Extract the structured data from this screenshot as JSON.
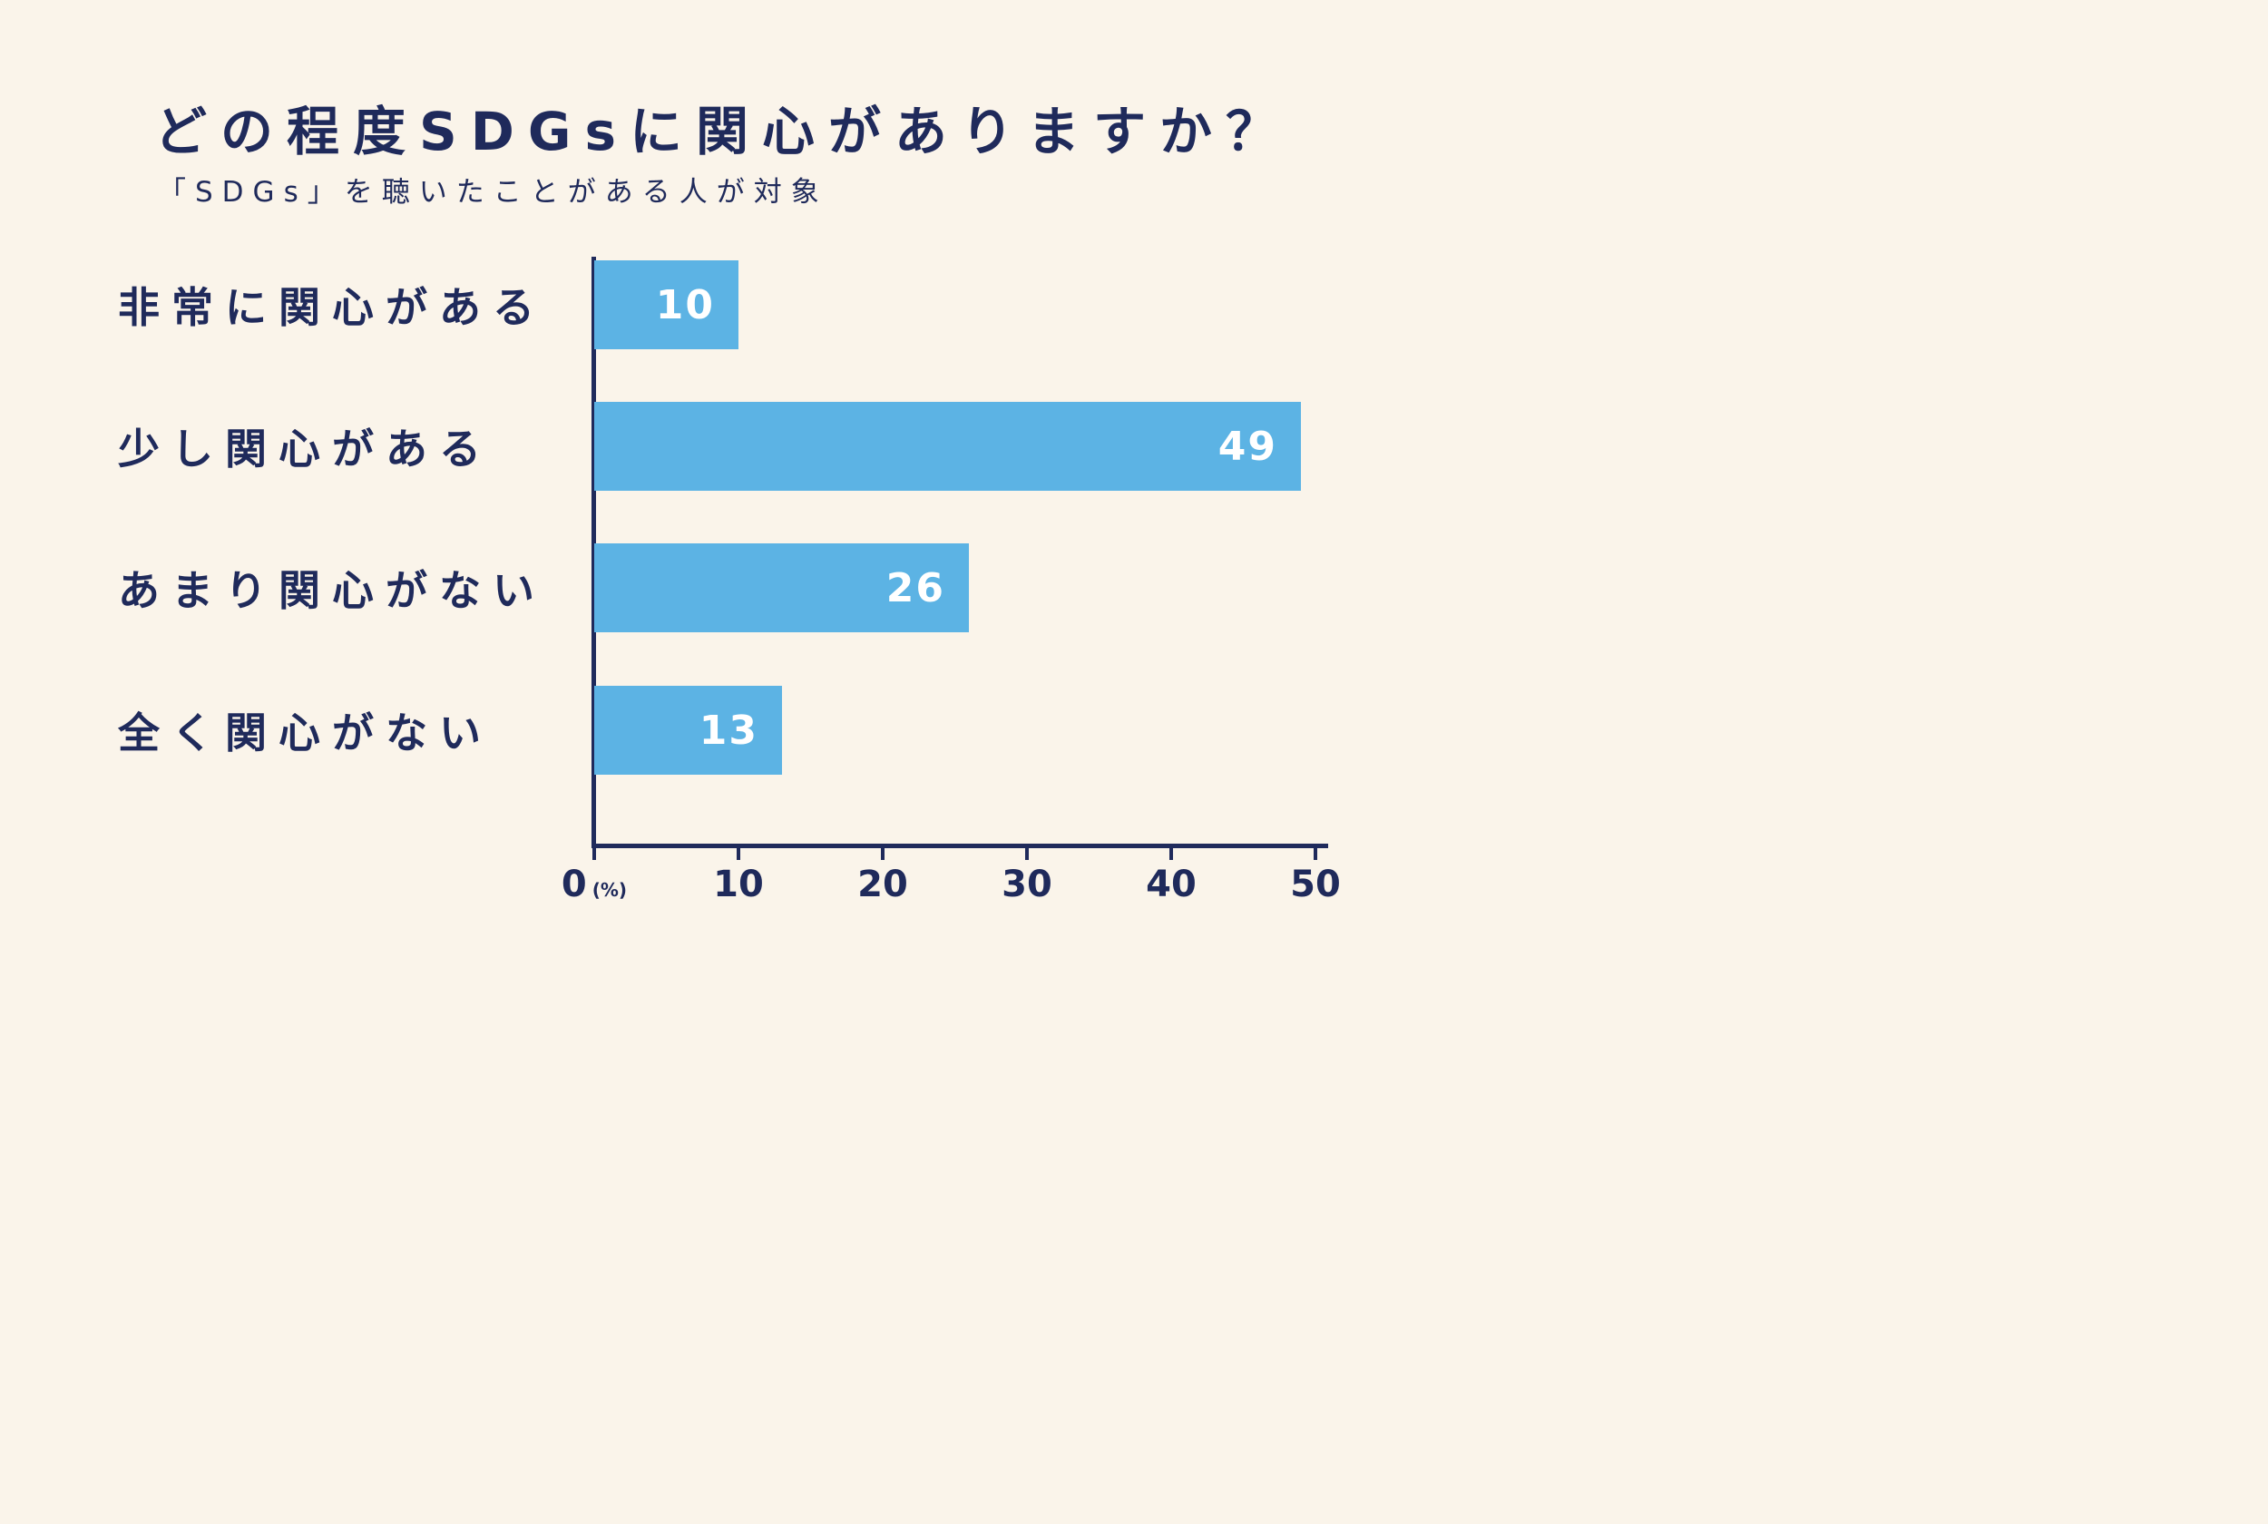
{
  "chart_data": {
    "type": "bar",
    "orientation": "horizontal",
    "title": "どの程度SDGsに関心がありますか？",
    "subtitle": "「SDGs」を聴いたことがある人が対象",
    "categories": [
      "非常に関心がある",
      "少し関心がある",
      "あまり関心がない",
      "全く関心がない"
    ],
    "values": [
      10,
      49,
      26,
      13
    ],
    "x_axis": {
      "ticks": [
        0,
        10,
        20,
        30,
        40,
        50
      ],
      "unit_label": "(%)",
      "min": 0,
      "max": 50
    },
    "grid": false,
    "legend": "none",
    "colors": {
      "background": "#faf4ea",
      "bar": "#5cb3e4",
      "text": "#1f2a5b",
      "value_label": "#ffffff"
    }
  }
}
